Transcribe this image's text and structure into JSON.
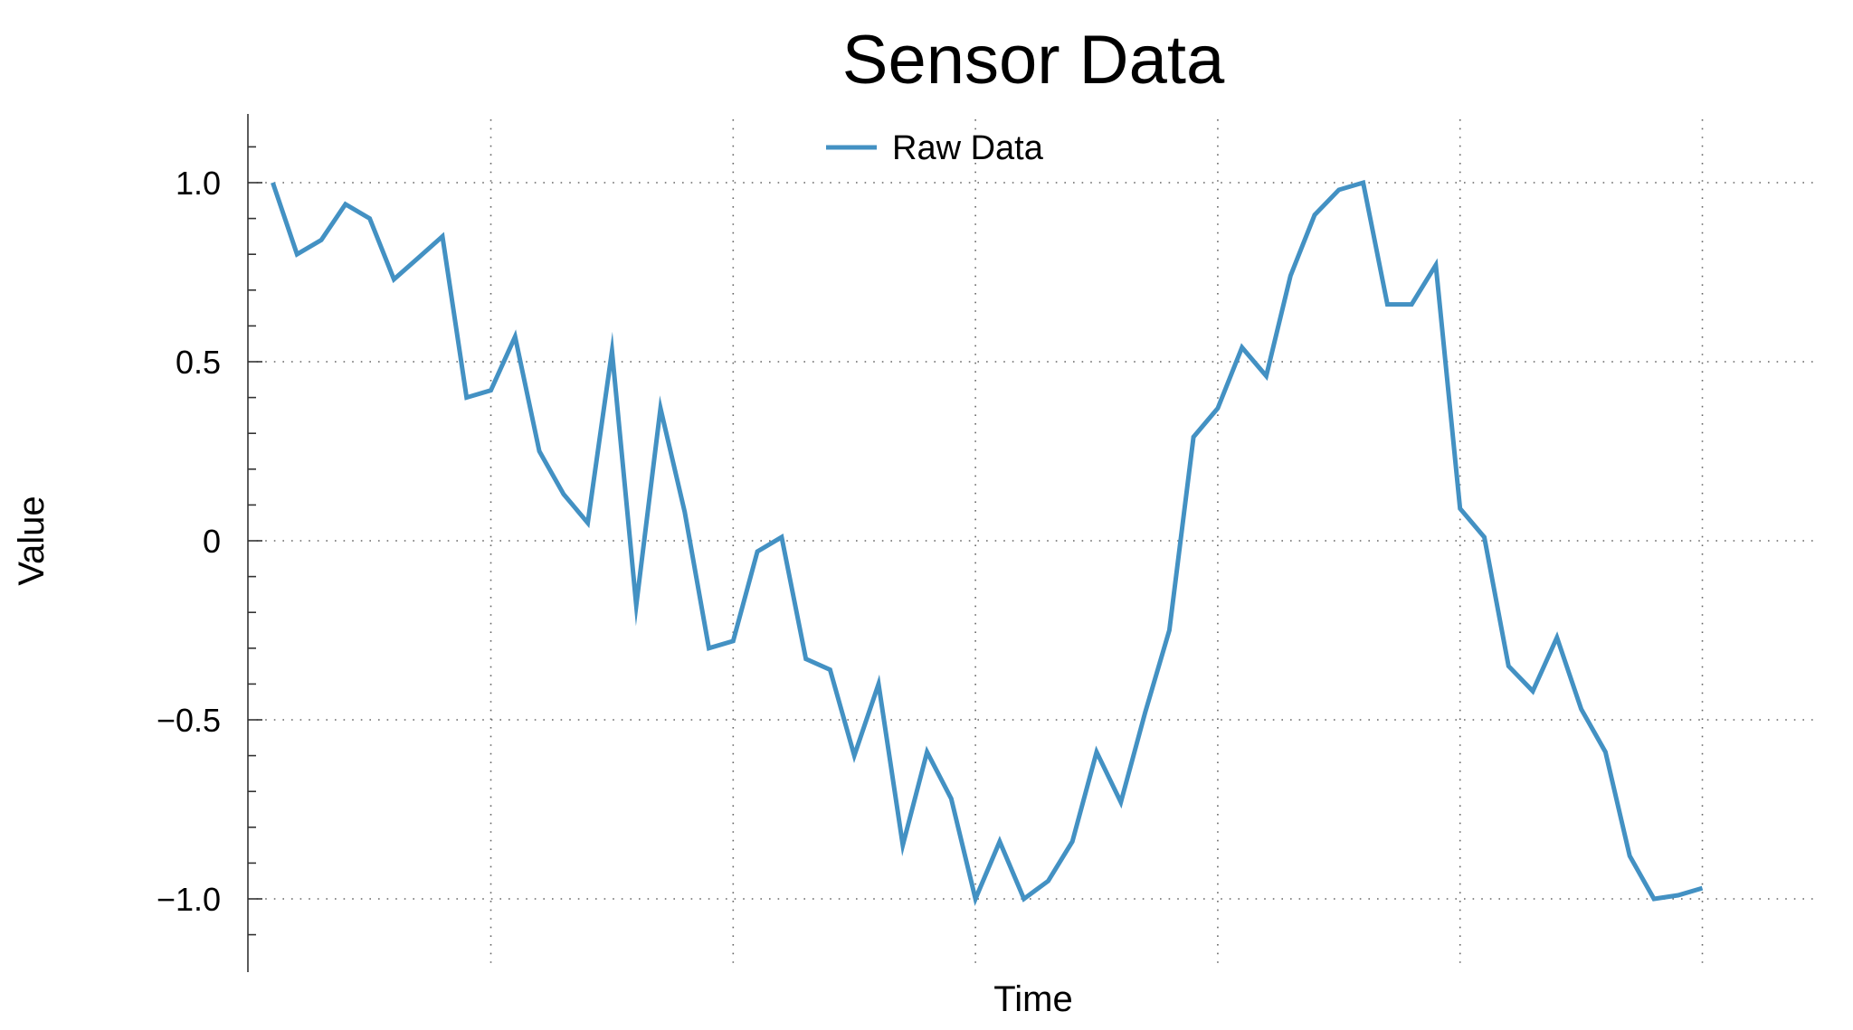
{
  "chart_data": {
    "type": "line",
    "title": "Sensor Data",
    "xlabel": "Time",
    "ylabel": "Value",
    "ylim": [
      -1.2,
      1.2
    ],
    "xlim": [
      -1,
      64
    ],
    "yticks": [
      {
        "value": 1.0,
        "label": "1.0"
      },
      {
        "value": 0.5,
        "label": "0.5"
      },
      {
        "value": 0,
        "label": "0"
      },
      {
        "value": -0.5,
        "label": "−0.5"
      },
      {
        "value": -1.0,
        "label": "−1.0"
      }
    ],
    "xgrid": [
      9,
      19,
      29,
      39,
      49,
      59
    ],
    "grid": true,
    "legend": {
      "position": "top-center"
    },
    "series": [
      {
        "name": "Raw Data",
        "color": "#4391c3",
        "x": [
          0,
          1,
          2,
          3,
          4,
          5,
          6,
          7,
          8,
          9,
          10,
          11,
          12,
          13,
          14,
          15,
          16,
          17,
          18,
          19,
          20,
          21,
          22,
          23,
          24,
          25,
          26,
          27,
          28,
          29,
          30,
          31,
          32,
          33,
          34,
          35,
          36,
          37,
          38,
          39,
          40,
          41,
          42,
          43,
          44,
          45,
          46,
          47,
          48,
          49,
          50,
          51,
          52,
          53,
          54,
          55,
          56,
          57,
          58,
          59
        ],
        "values": [
          1.0,
          0.8,
          0.84,
          0.94,
          0.9,
          0.73,
          0.79,
          0.85,
          0.4,
          0.42,
          0.57,
          0.25,
          0.13,
          0.05,
          0.53,
          -0.18,
          0.37,
          0.08,
          -0.3,
          -0.28,
          -0.03,
          0.01,
          -0.33,
          -0.36,
          -0.6,
          -0.4,
          -0.85,
          -0.59,
          -0.72,
          -1.0,
          -0.84,
          -1.0,
          -0.95,
          -0.84,
          -0.59,
          -0.73,
          -0.48,
          -0.25,
          0.29,
          0.37,
          0.54,
          0.46,
          0.74,
          0.91,
          0.98,
          1.0,
          0.66,
          0.66,
          0.77,
          0.09,
          0.01,
          -0.35,
          -0.42,
          -0.27,
          -0.47,
          -0.59,
          -0.88,
          -1.0,
          -0.99,
          -0.97
        ]
      }
    ]
  }
}
